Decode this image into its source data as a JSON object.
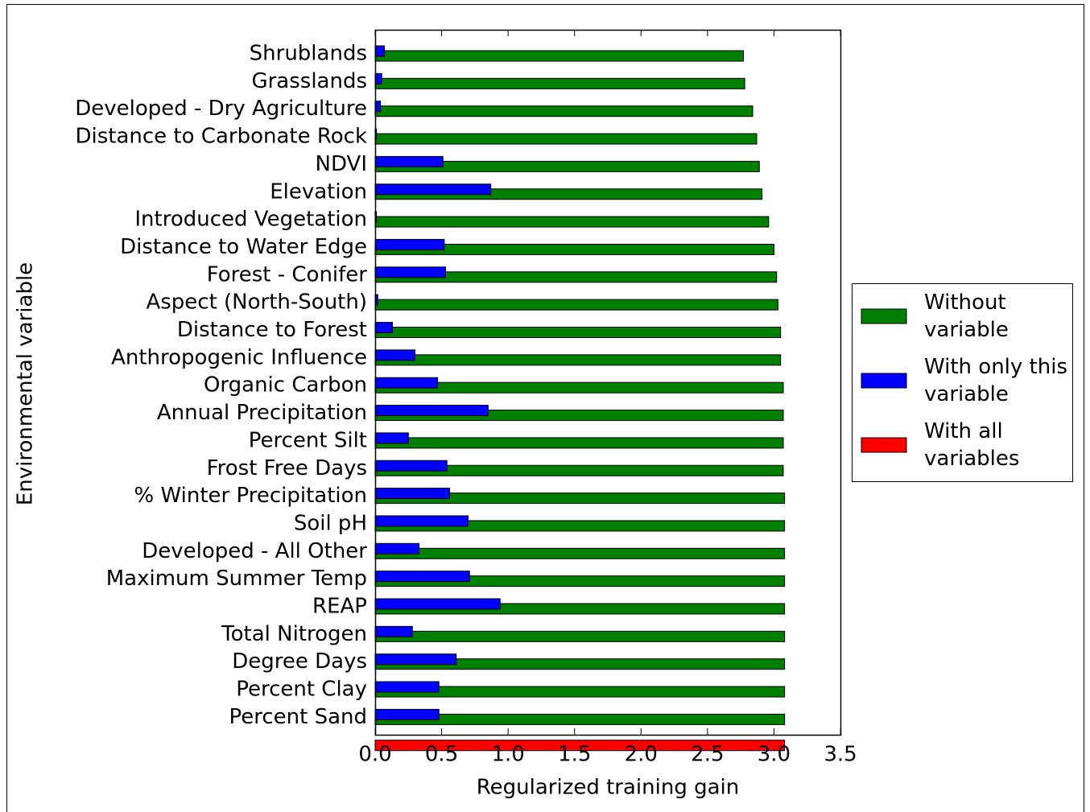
{
  "chart_data": {
    "type": "bar",
    "orientation": "horizontal",
    "xlabel": "Regularized training gain",
    "ylabel": "Environmental variable",
    "categories": [
      "Shrublands",
      "Grasslands",
      "Developed - Dry Agriculture",
      "Distance to Carbonate Rock",
      "NDVI",
      "Elevation",
      "Introduced Vegetation",
      "Distance to Water Edge",
      "Forest - Conifer",
      "Aspect (North-South)",
      "Distance to Forest",
      "Anthropogenic Influence",
      "Organic Carbon",
      "Annual Precipitation",
      "Percent Silt",
      "Frost Free Days",
      "% Winter Precipitation",
      "Soil pH",
      "Developed - All Other",
      "Maximum Summer Temp",
      "REAP",
      "Total Nitrogen",
      "Degree Days",
      "Percent Clay",
      "Percent Sand",
      null
    ],
    "series": [
      {
        "name": "Without variable",
        "color": "#008000",
        "values": [
          2.77,
          2.78,
          2.84,
          2.87,
          2.89,
          2.91,
          2.96,
          3.0,
          3.02,
          3.03,
          3.05,
          3.05,
          3.07,
          3.07,
          3.07,
          3.07,
          3.08,
          3.08,
          3.08,
          3.08,
          3.08,
          3.08,
          3.08,
          3.08,
          3.08,
          null
        ]
      },
      {
        "name": "With only this variable",
        "color": "#0000ff",
        "values": [
          0.07,
          0.05,
          0.04,
          0.01,
          0.51,
          0.87,
          0.01,
          0.52,
          0.53,
          0.02,
          0.13,
          0.3,
          0.47,
          0.85,
          0.25,
          0.54,
          0.56,
          0.7,
          0.33,
          0.71,
          0.94,
          0.28,
          0.61,
          0.48,
          0.48,
          null
        ]
      },
      {
        "name": "With all variables",
        "color": "#ff0000",
        "values": [
          null,
          null,
          null,
          null,
          null,
          null,
          null,
          null,
          null,
          null,
          null,
          null,
          null,
          null,
          null,
          null,
          null,
          null,
          null,
          null,
          null,
          null,
          null,
          null,
          null,
          3.08
        ]
      }
    ],
    "xlim": [
      0,
      3.5
    ],
    "xticks": [
      {
        "value": 0,
        "label": "0.0"
      },
      0.5,
      {
        "value": 1,
        "label": "1.0"
      },
      1.5,
      {
        "value": 2,
        "label": "2.0"
      },
      2.5,
      {
        "value": 3,
        "label": "3.0"
      },
      3.5
    ],
    "legend": "right"
  }
}
